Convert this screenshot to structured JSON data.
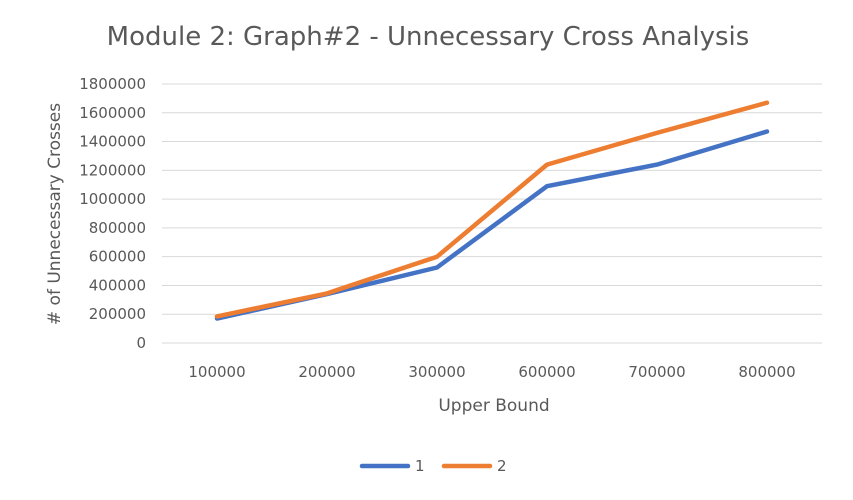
{
  "chart_data": {
    "type": "line",
    "title": "Module 2: Graph#2 - Unnecessary Cross Analysis",
    "xlabel": "Upper Bound",
    "ylabel": "# of Unnecessary Crosses",
    "categories": [
      "100000",
      "200000",
      "300000",
      "600000",
      "700000",
      "800000"
    ],
    "yticks": [
      "0",
      "200000",
      "400000",
      "600000",
      "800000",
      "1000000",
      "1200000",
      "1400000",
      "1600000",
      "1800000"
    ],
    "ylim": [
      0,
      1800000
    ],
    "grid": true,
    "legend_position": "bottom",
    "series": [
      {
        "name": "1",
        "color": "#4472C4",
        "values": [
          170000,
          340000,
          525000,
          1090000,
          1240000,
          1470000
        ]
      },
      {
        "name": "2",
        "color": "#ED7D31",
        "values": [
          185000,
          345000,
          600000,
          1240000,
          1460000,
          1670000
        ]
      }
    ]
  }
}
